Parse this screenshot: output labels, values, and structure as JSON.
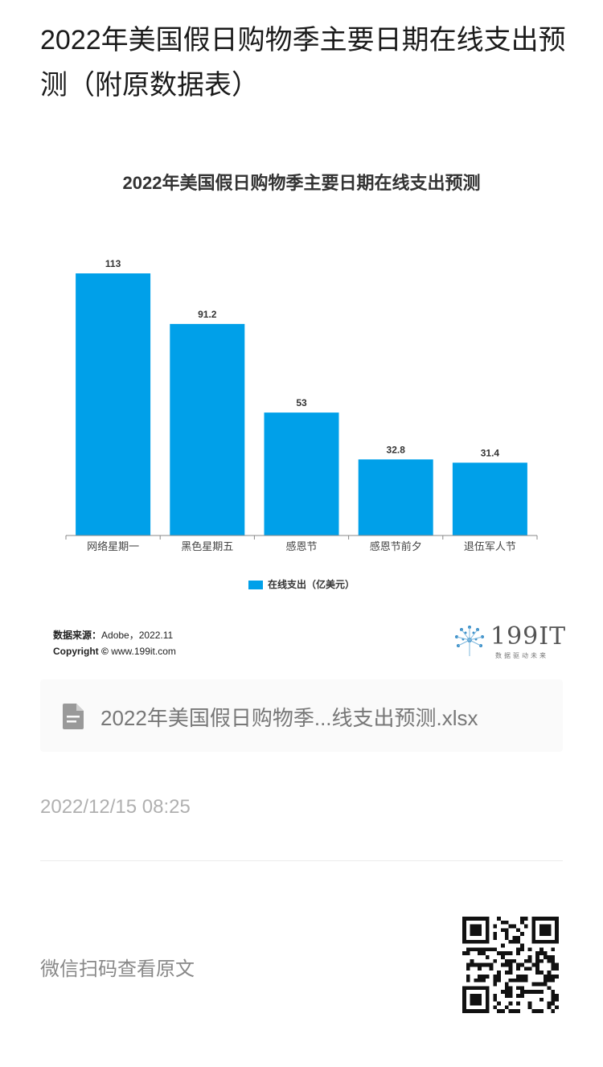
{
  "page": {
    "title": "2022年美国假日购物季主要日期在线支出预测（附原数据表）"
  },
  "chart_data": {
    "type": "bar",
    "title": "2022年美国假日购物季主要日期在线支出预测",
    "categories": [
      "网络星期一",
      "黑色星期五",
      "感恩节",
      "感恩节前夕",
      "退伍军人节"
    ],
    "series": [
      {
        "name": "在线支出（亿美元）",
        "values": [
          113,
          91.2,
          53,
          32.8,
          31.4
        ],
        "value_labels": [
          "113",
          "91.2",
          "53",
          "32.8",
          "31.4"
        ]
      }
    ],
    "ylim": [
      0,
      113
    ],
    "grid": false,
    "legend_position": "bottom",
    "colors": {
      "bar": "#00a0e9",
      "axis": "#888888"
    }
  },
  "source": {
    "label": "数据来源：",
    "value": "Adobe，2022.11",
    "copyright_label": "Copyright ©",
    "copyright_value": "www.199it.com"
  },
  "logo": {
    "text": "199IT",
    "subtitle": "数据驱动未来"
  },
  "attachment": {
    "icon": "document-icon",
    "file_name": "2022年美国假日购物季...线支出预测.xlsx"
  },
  "meta": {
    "timestamp": "2022/12/15 08:25",
    "scan_text": "微信扫码查看原文"
  }
}
